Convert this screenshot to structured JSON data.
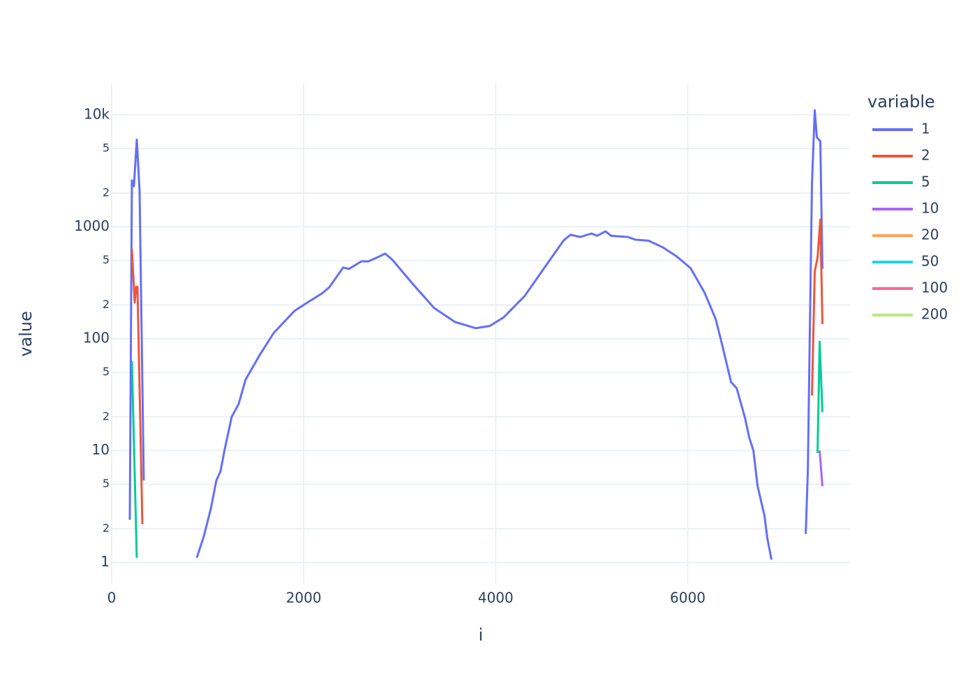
{
  "chart_data": {
    "type": "line",
    "x_label": "i",
    "y_label": "value",
    "legend_title": "variable",
    "legend": "right",
    "grid": true,
    "ylog": true,
    "xlim": [
      0,
      7690
    ],
    "ylim": [
      0.65,
      19000
    ],
    "xticks": [
      0,
      2000,
      4000,
      6000
    ],
    "yticks": [
      1,
      2,
      5,
      10,
      {
        "value": 20,
        "label": "2"
      },
      {
        "value": 50,
        "label": "5"
      },
      100,
      {
        "value": 200,
        "label": "2"
      },
      {
        "value": 500,
        "label": "5"
      },
      1000,
      {
        "value": 2000,
        "label": "2"
      },
      {
        "value": 5000,
        "label": "5"
      },
      {
        "value": 10000,
        "label": "10k"
      }
    ],
    "series": [
      {
        "name": "1",
        "color": "#636efa",
        "x": [
          189,
          211,
          232,
          262,
          291,
          334,
          610,
          886,
          959,
          1032,
          1090,
          1133,
          1177,
          1250,
          1322,
          1395,
          1540,
          1686,
          1904,
          2049,
          2194,
          2267,
          2412,
          2471,
          2601,
          2674,
          2761,
          2848,
          2921,
          3139,
          3357,
          3575,
          3793,
          3938,
          4083,
          4301,
          4519,
          4708,
          4780,
          4882,
          4998,
          5056,
          5144,
          5202,
          5376,
          5449,
          5594,
          5739,
          5885,
          6030,
          6175,
          6292,
          6364,
          6451,
          6510,
          6597,
          6641,
          6684,
          6728,
          6800,
          6829,
          6872,
          7050,
          7229,
          7251,
          7294,
          7323,
          7345,
          7381,
          7403
        ],
        "values": [
          2.4,
          2600,
          2300,
          6000,
          2100,
          5.4,
          null,
          1.1,
          1.7,
          3.0,
          5.4,
          6.5,
          10.2,
          20,
          26,
          43,
          71,
          112,
          177,
          213,
          255,
          288,
          432,
          420,
          490,
          490,
          530,
          575,
          510,
          306,
          188,
          141,
          124,
          130,
          155,
          240,
          444,
          755,
          848,
          810,
          870,
          830,
          910,
          830,
          810,
          768,
          750,
          655,
          543,
          426,
          258,
          149,
          84,
          41,
          36,
          19.5,
          13,
          10,
          4.8,
          2.6,
          1.65,
          1.06,
          null,
          1.8,
          6.6,
          2400,
          11000,
          6300,
          5800,
          420
        ]
      },
      {
        "name": "2",
        "color": "#EF553B",
        "x": [
          211,
          240,
          255,
          269,
          320,
          3800,
          7294,
          7323,
          7352,
          7381,
          7403
        ],
        "values": [
          630,
          210,
          290,
          290,
          2.2,
          null,
          31,
          400,
          530,
          1160,
          135
        ]
      },
      {
        "name": "5",
        "color": "#00cc96",
        "x": [
          211,
          262,
          3800,
          7352,
          7374,
          7403
        ],
        "values": [
          63,
          1.1,
          null,
          9.5,
          94,
          22
        ]
      },
      {
        "name": "10",
        "color": "#ab63fa",
        "x": [
          7374,
          7403
        ],
        "values": [
          10,
          4.8
        ]
      },
      {
        "name": "20",
        "color": "#FFA15A",
        "x": [],
        "values": []
      },
      {
        "name": "50",
        "color": "#19d3f3",
        "x": [],
        "values": []
      },
      {
        "name": "100",
        "color": "#FF6692",
        "x": [],
        "values": []
      },
      {
        "name": "200",
        "color": "#B6E880",
        "x": [],
        "values": []
      }
    ]
  }
}
